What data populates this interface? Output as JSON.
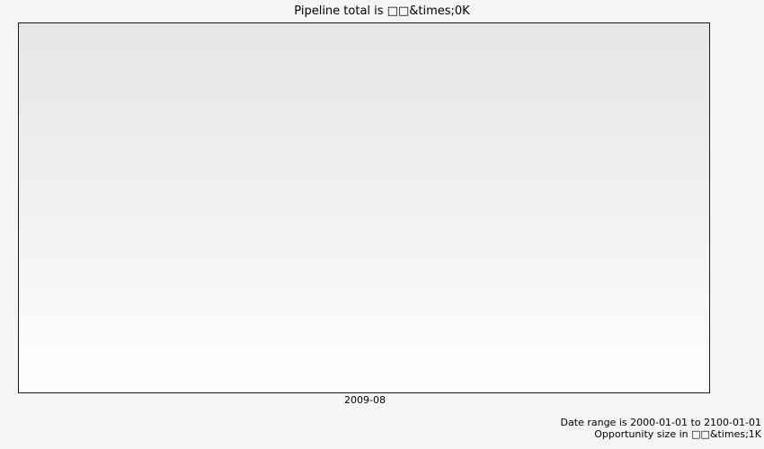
{
  "chart_data": {
    "type": "scatter",
    "title": "Pipeline total is □□&times;0K",
    "xlabel": "",
    "ylabel": "",
    "x_ticks": [
      "2009-08"
    ],
    "series": [],
    "grid": false,
    "legend": "none",
    "notes": [
      "Date range is 2000-01-01 to 2100-01-01",
      "Opportunity size in □□&times;1K"
    ]
  },
  "colors": {
    "background": "#f5f5f5",
    "plot_gradient_top": "#e6e6e6",
    "plot_gradient_bottom": "#ffffff",
    "border": "#1a1a1a"
  }
}
